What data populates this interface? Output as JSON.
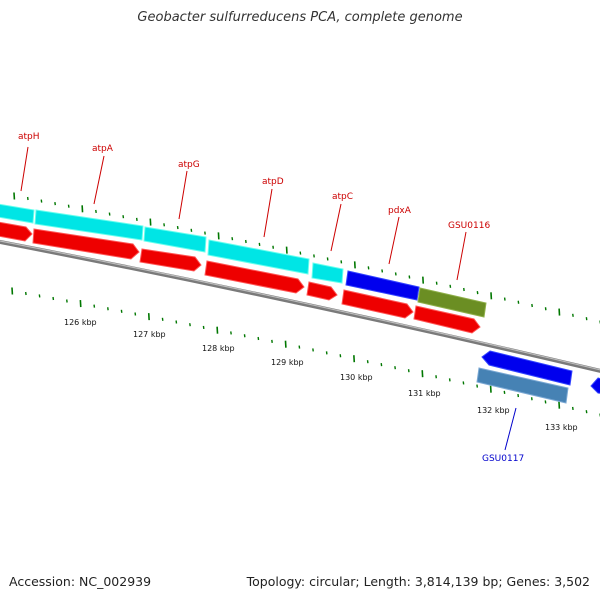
{
  "title": "Geobacter sulfurreducens PCA, complete genome",
  "footer": {
    "accession": "Accession: NC_002939",
    "summary": "Topology: circular; Length: 3,814,139 bp; Genes: 3,502"
  },
  "colors": {
    "label_red": "#cc0000",
    "label_blue": "#0000cc",
    "cyan": "#00ffff",
    "red": "#ff0000",
    "blue": "#0000ff",
    "olive": "#6b8e23",
    "steel": "#4682b4",
    "tick_green": "#007700",
    "backbone": "#888888"
  },
  "gene_labels": [
    {
      "id": "atpH",
      "text": "atpH",
      "color": "red"
    },
    {
      "id": "atpA",
      "text": "atpA",
      "color": "red"
    },
    {
      "id": "atpG",
      "text": "atpG",
      "color": "red"
    },
    {
      "id": "atpD",
      "text": "atpD",
      "color": "red"
    },
    {
      "id": "atpC",
      "text": "atpC",
      "color": "red"
    },
    {
      "id": "pdxA",
      "text": "pdxA",
      "color": "red"
    },
    {
      "id": "GSU0116",
      "text": "GSU0116",
      "color": "red"
    },
    {
      "id": "GSU0117",
      "text": "GSU0117",
      "color": "blue"
    }
  ],
  "kbp_ticks": [
    "126 kbp",
    "127 kbp",
    "128 kbp",
    "129 kbp",
    "130 kbp",
    "131 kbp",
    "132 kbp",
    "133 kbp"
  ]
}
